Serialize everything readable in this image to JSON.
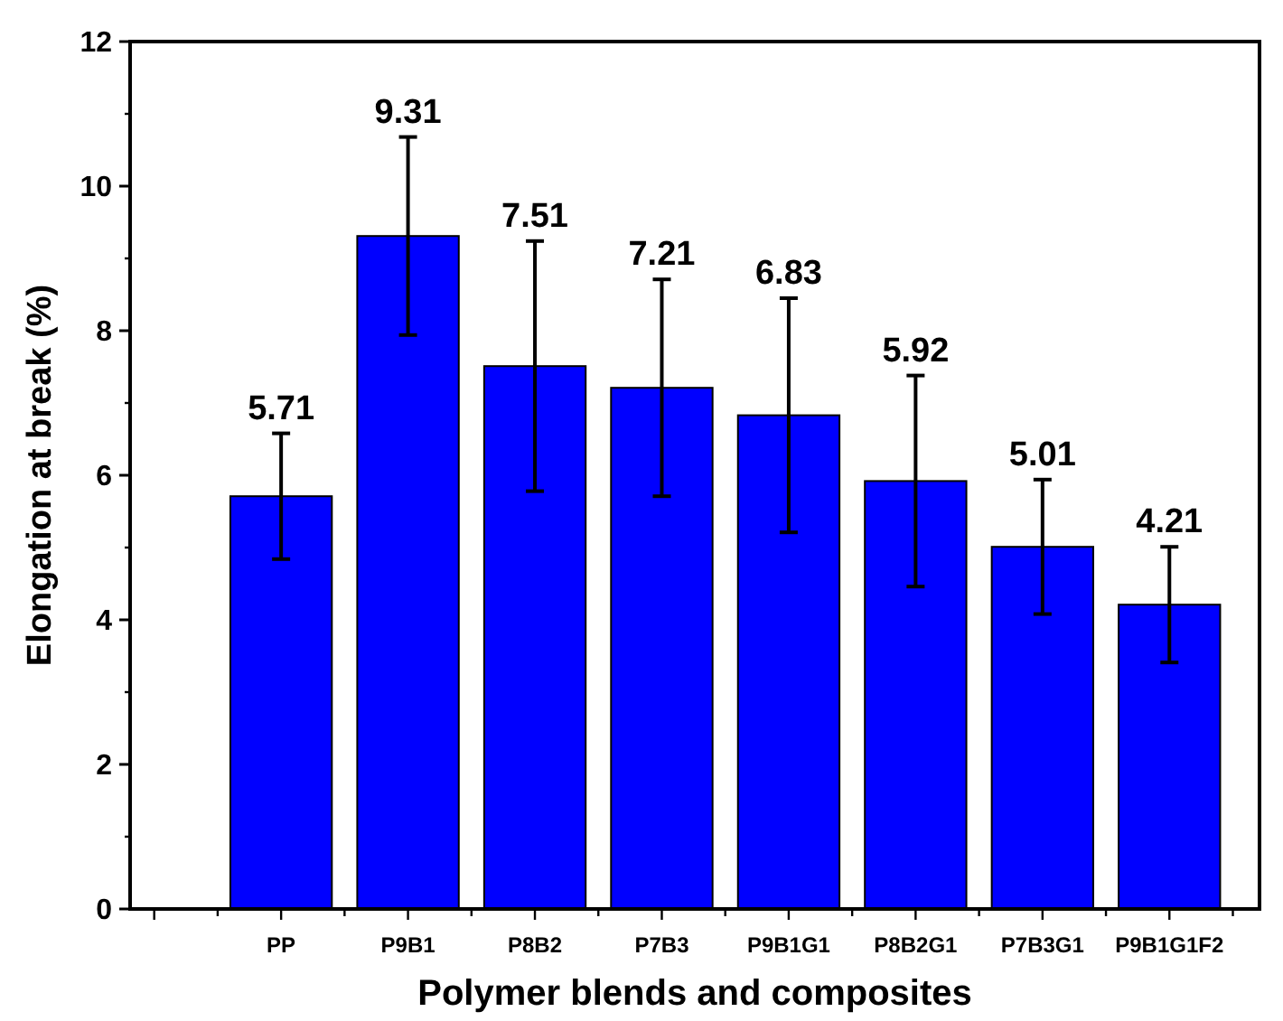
{
  "chart_data": {
    "type": "bar",
    "xlabel": "Polymer blends and composites",
    "ylabel": "Elongation at break (%)",
    "categories": [
      "PP",
      "P9B1",
      "P8B2",
      "P7B3",
      "P9B1G1",
      "P8B2G1",
      "P7B3G1",
      "P9B1G1F2"
    ],
    "values": [
      5.71,
      9.31,
      7.51,
      7.21,
      6.83,
      5.92,
      5.01,
      4.21
    ],
    "errors": [
      0.87,
      1.37,
      1.73,
      1.5,
      1.62,
      1.46,
      0.93,
      0.8
    ],
    "color": "#0000ff",
    "ylim": [
      0,
      12
    ],
    "yticks": [
      0,
      2,
      4,
      6,
      8,
      10,
      12
    ],
    "annotations": [
      {
        "text": "5.71",
        "x": "PP",
        "y": 6.58
      },
      {
        "text": "9.31",
        "x": "P9B1",
        "y": 10.68
      },
      {
        "text": "7.51",
        "x": "P8B2",
        "y": 9.24
      },
      {
        "text": "7.21",
        "x": "P7B3",
        "y": 8.71
      },
      {
        "text": "6.83",
        "x": "P9B1G1",
        "y": 8.45
      },
      {
        "text": "5.92",
        "x": "P8B2G1",
        "y": 7.38
      },
      {
        "text": "5.01",
        "x": "P7B3G1",
        "y": 5.94
      },
      {
        "text": "4.21",
        "x": "P9B1G1F2",
        "y": 5.01
      }
    ],
    "grid": false,
    "legend": false
  }
}
